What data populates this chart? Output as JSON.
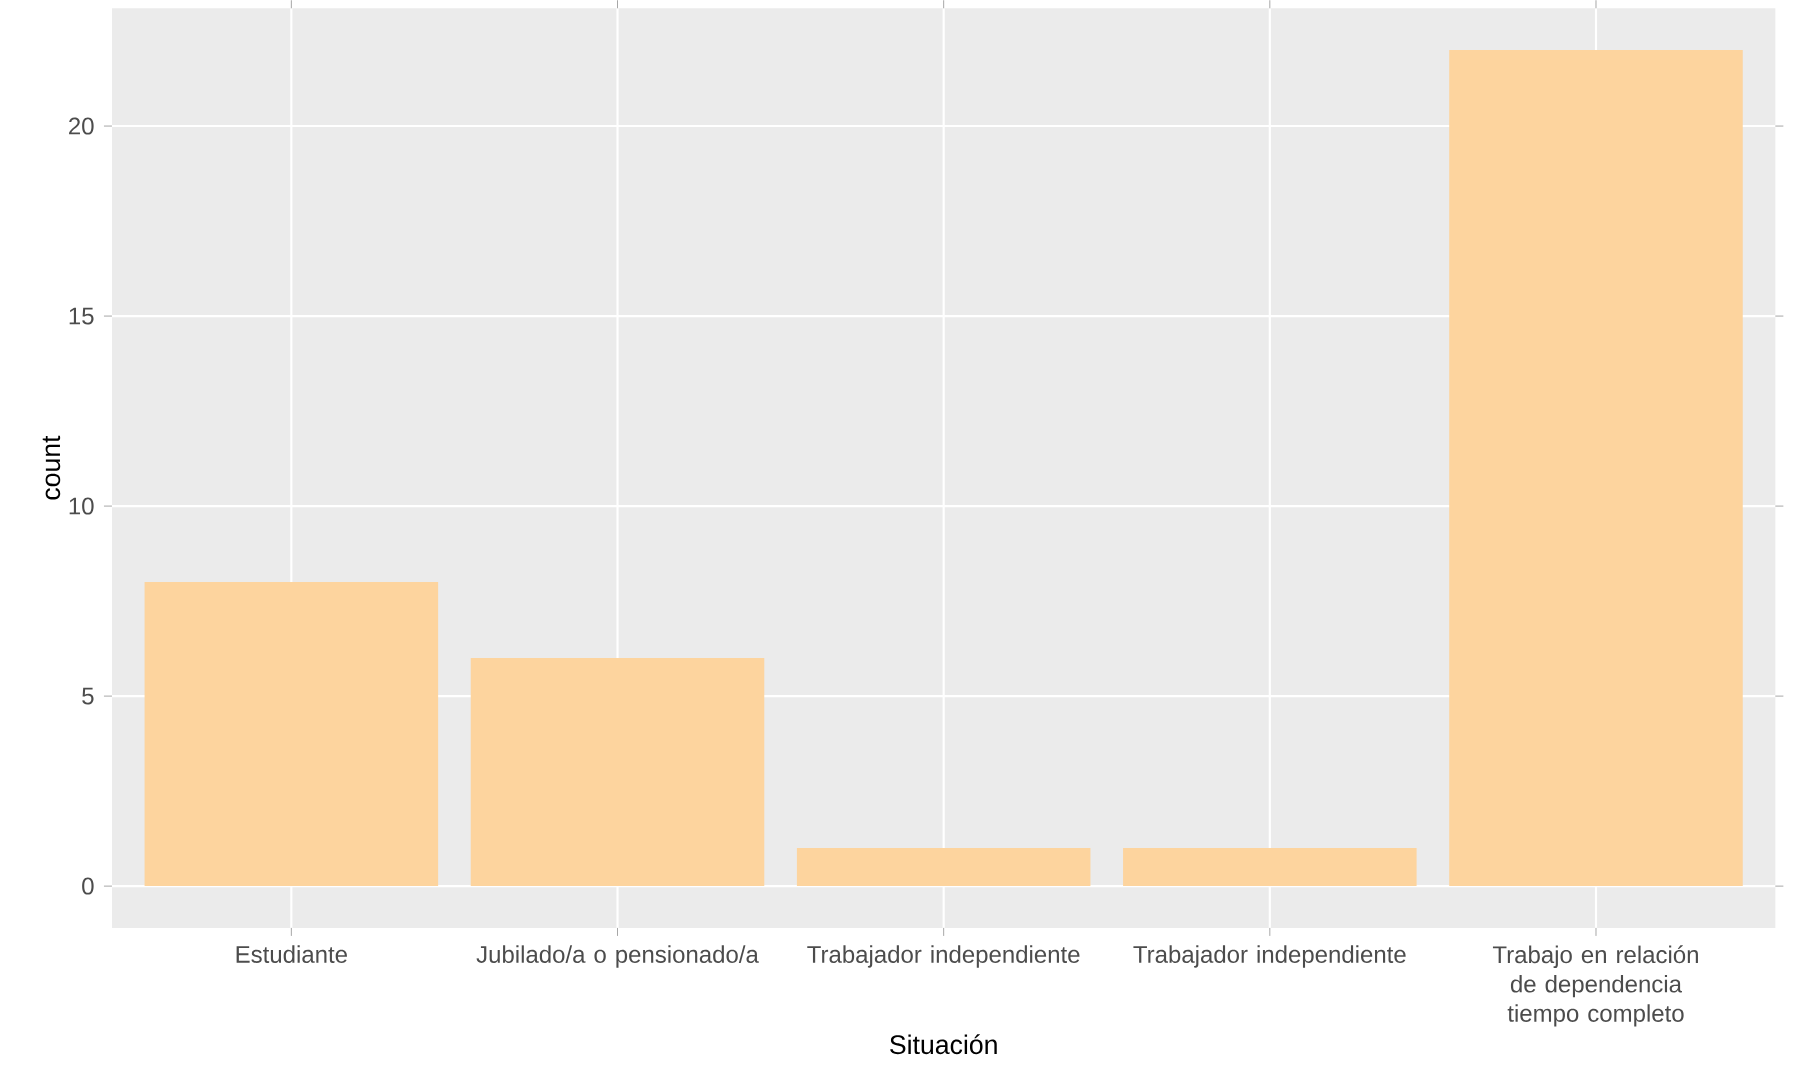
{
  "chart_data": {
    "type": "bar",
    "xlabel": "Situación",
    "ylabel": "count",
    "categories": [
      "Estudiante",
      "Jubilado/a o pensionado/a",
      "Trabajador independiente",
      "Trabajador independiente",
      "Trabajo en relación de dependencia tiempo completo"
    ],
    "values": [
      8,
      6,
      1,
      1,
      22
    ],
    "color": "#fdd49e",
    "ylim": [
      -1.1,
      23.1
    ],
    "yticks": [
      0,
      5,
      10,
      15,
      20
    ],
    "grid": true
  }
}
